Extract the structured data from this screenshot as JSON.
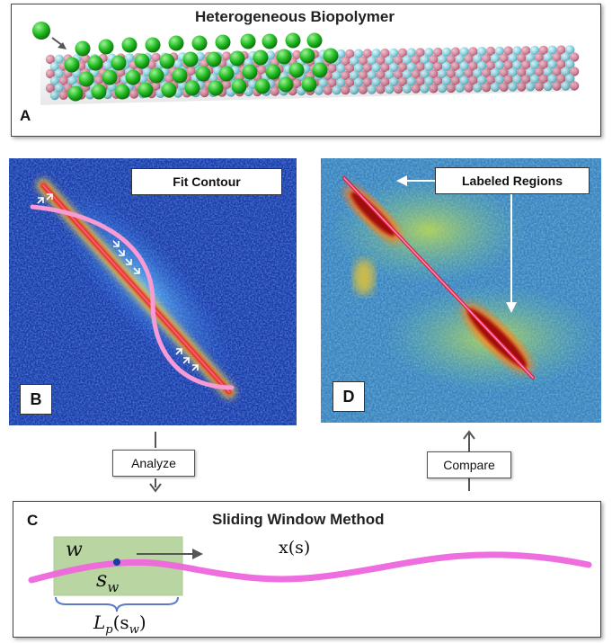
{
  "panel_a": {
    "title": "Heterogeneous Biopolymer",
    "letter": "A"
  },
  "panel_b": {
    "letter": "B",
    "callout": "Fit Contour"
  },
  "panel_d": {
    "letter": "D",
    "callout": "Labeled Regions"
  },
  "flow": {
    "analyze": "Analyze",
    "compare": "Compare"
  },
  "panel_c": {
    "letter": "C",
    "title": "Sliding Window Method",
    "window_label": "w",
    "point_label": "s",
    "point_sub": "w",
    "contour_label": "x(s)",
    "persistence_label": "L",
    "persistence_sub": "p",
    "persistence_arg": "(s",
    "persistence_arg_sub": "w",
    "persistence_close": ")"
  },
  "colors": {
    "contour": "#ee66dd",
    "window": "#9cc47a",
    "bead_pink": "#d98aa0",
    "bead_cyan": "#8fd6e3",
    "label_green": "#22bb22",
    "heat_bg": "#1a3aa8"
  }
}
